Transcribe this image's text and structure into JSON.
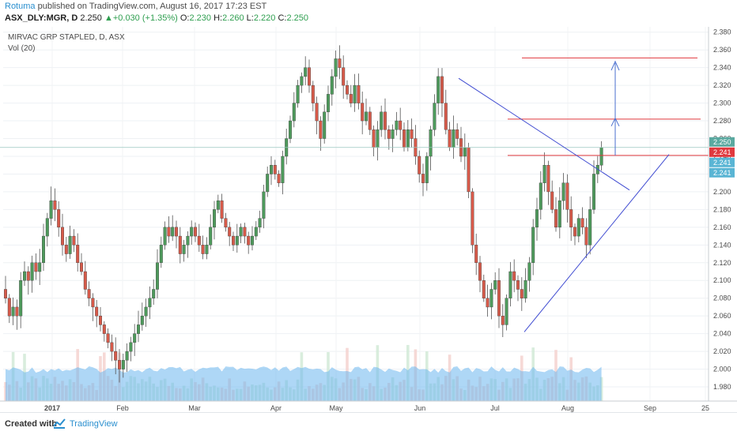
{
  "header": {
    "author": "Rotuma",
    "published_text": "published on TradingView.com, August 16, 2017 17:23 EST",
    "ohlc_line": {
      "symbol": "ASX_DLY:MGR, D",
      "price": "2.250",
      "change": "+0.030 (+1.35%)",
      "o_label": "O:",
      "o": "2.230",
      "h_label": "H:",
      "h": "2.260",
      "l_label": "L:",
      "l": "2.220",
      "c_label": "C:",
      "c": "2.250"
    }
  },
  "chart_data": {
    "type": "candlestick",
    "title": "MIRVAC GRP STAPLED, D, ASX",
    "subtitle": "Vol (20)",
    "ylim": [
      1.964,
      2.386
    ],
    "y_ticks": [
      "2.380",
      "2.360",
      "2.340",
      "2.320",
      "2.300",
      "2.280",
      "2.260",
      "2.240",
      "2.220",
      "2.200",
      "2.180",
      "2.160",
      "2.140",
      "2.120",
      "2.100",
      "2.080",
      "2.060",
      "2.040",
      "2.020",
      "2.000",
      "1.980"
    ],
    "x_labels": [
      "2017",
      "Feb",
      "Mar",
      "Apr",
      "May",
      "Jun",
      "Jul",
      "Aug",
      "Sep",
      "25"
    ],
    "candles_start": "2016-12-19",
    "closes": [
      2.08,
      2.06,
      2.07,
      2.06,
      2.1,
      2.11,
      2.1,
      2.12,
      2.11,
      2.12,
      2.15,
      2.17,
      2.19,
      2.18,
      2.16,
      2.14,
      2.13,
      2.15,
      2.14,
      2.12,
      2.11,
      2.09,
      2.08,
      2.07,
      2.06,
      2.05,
      2.04,
      2.03,
      2.02,
      2.01,
      2.0,
      2.01,
      2.02,
      2.03,
      2.04,
      2.05,
      2.06,
      2.07,
      2.08,
      2.09,
      2.12,
      2.14,
      2.16,
      2.15,
      2.16,
      2.15,
      2.13,
      2.14,
      2.15,
      2.16,
      2.15,
      2.14,
      2.13,
      2.14,
      2.16,
      2.18,
      2.19,
      2.17,
      2.16,
      2.15,
      2.14,
      2.15,
      2.16,
      2.15,
      2.14,
      2.15,
      2.16,
      2.17,
      2.2,
      2.22,
      2.23,
      2.22,
      2.21,
      2.24,
      2.26,
      2.28,
      2.3,
      2.32,
      2.33,
      2.34,
      2.32,
      2.3,
      2.28,
      2.26,
      2.29,
      2.31,
      2.33,
      2.35,
      2.34,
      2.32,
      2.31,
      2.3,
      2.32,
      2.3,
      2.28,
      2.29,
      2.27,
      2.25,
      2.27,
      2.29,
      2.27,
      2.26,
      2.27,
      2.28,
      2.27,
      2.25,
      2.27,
      2.26,
      2.24,
      2.22,
      2.21,
      2.24,
      2.27,
      2.3,
      2.33,
      2.3,
      2.27,
      2.25,
      2.27,
      2.26,
      2.24,
      2.25,
      2.2,
      2.14,
      2.12,
      2.1,
      2.08,
      2.07,
      2.09,
      2.1,
      2.06,
      2.05,
      2.08,
      2.11,
      2.1,
      2.09,
      2.08,
      2.1,
      2.12,
      2.16,
      2.18,
      2.21,
      2.23,
      2.2,
      2.18,
      2.16,
      2.19,
      2.21,
      2.18,
      2.16,
      2.15,
      2.17,
      2.16,
      2.14,
      2.18,
      2.22,
      2.23,
      2.25
    ],
    "horizontal_levels": [
      2.351,
      2.282,
      2.241
    ],
    "last_price_level": 2.25,
    "price_labels": [
      "2.250",
      "2.241",
      "2.241",
      "2.241"
    ],
    "colors": {
      "up": "#4e9a5c",
      "down": "#d65a4a",
      "volume": "#6bb6ef",
      "level_line": "#e0393e",
      "trend_line": "#3f4bd1",
      "arrow": "#4a6fcf"
    }
  },
  "footer": {
    "created_with": "Created with",
    "brand": "TradingView"
  }
}
